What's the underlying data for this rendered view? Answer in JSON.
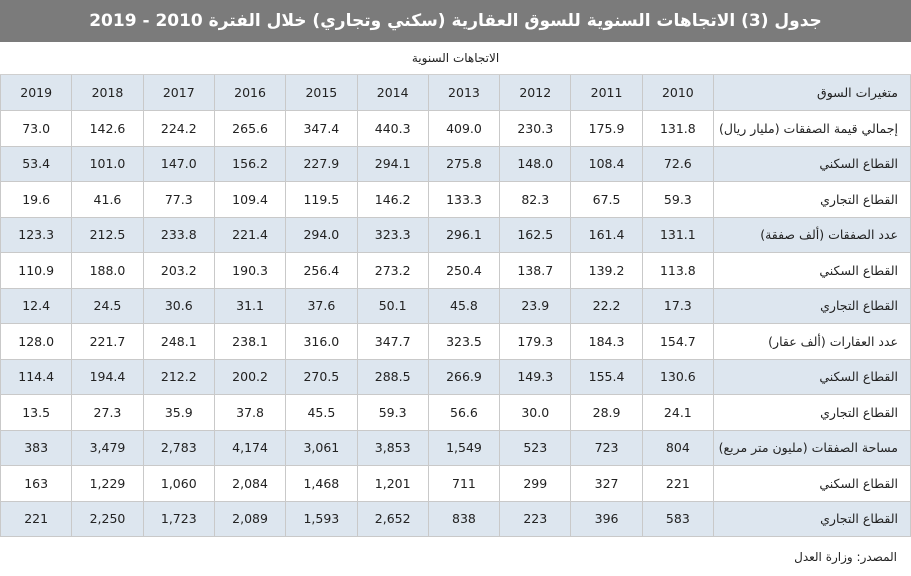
{
  "title": "جدول (3) الاتجاهات السنوية للسوق العقارية (سكني وتجاري) خلال الفترة 2010 - 2019",
  "subheader": "الاتجاهات السنوية",
  "header": {
    "label": "متغيرات السوق",
    "years": [
      "2010",
      "2011",
      "2012",
      "2013",
      "2014",
      "2015",
      "2016",
      "2017",
      "2018",
      "2019"
    ]
  },
  "rows": [
    {
      "label": "إجمالي قيمة الصفقات (مليار ريال)",
      "values": [
        "131.8",
        "175.9",
        "230.3",
        "409.0",
        "440.3",
        "347.4",
        "265.6",
        "224.2",
        "142.6",
        "73.0"
      ]
    },
    {
      "label": "القطاع السكني",
      "values": [
        "72.6",
        "108.4",
        "148.0",
        "275.8",
        "294.1",
        "227.9",
        "156.2",
        "147.0",
        "101.0",
        "53.4"
      ]
    },
    {
      "label": "القطاع التجاري",
      "values": [
        "59.3",
        "67.5",
        "82.3",
        "133.3",
        "146.2",
        "119.5",
        "109.4",
        "77.3",
        "41.6",
        "19.6"
      ]
    },
    {
      "label": "عدد الصفقات (ألف صفقة)",
      "values": [
        "131.1",
        "161.4",
        "162.5",
        "296.1",
        "323.3",
        "294.0",
        "221.4",
        "233.8",
        "212.5",
        "123.3"
      ]
    },
    {
      "label": "القطاع السكني",
      "values": [
        "113.8",
        "139.2",
        "138.7",
        "250.4",
        "273.2",
        "256.4",
        "190.3",
        "203.2",
        "188.0",
        "110.9"
      ]
    },
    {
      "label": "القطاع التجاري",
      "values": [
        "17.3",
        "22.2",
        "23.9",
        "45.8",
        "50.1",
        "37.6",
        "31.1",
        "30.6",
        "24.5",
        "12.4"
      ]
    },
    {
      "label": "عدد العقارات (ألف عقار)",
      "values": [
        "154.7",
        "184.3",
        "179.3",
        "323.5",
        "347.7",
        "316.0",
        "238.1",
        "248.1",
        "221.7",
        "128.0"
      ]
    },
    {
      "label": "القطاع السكني",
      "values": [
        "130.6",
        "155.4",
        "149.3",
        "266.9",
        "288.5",
        "270.5",
        "200.2",
        "212.2",
        "194.4",
        "114.4"
      ]
    },
    {
      "label": "القطاع التجاري",
      "values": [
        "24.1",
        "28.9",
        "30.0",
        "56.6",
        "59.3",
        "45.5",
        "37.8",
        "35.9",
        "27.3",
        "13.5"
      ]
    },
    {
      "label": "مساحة الصفقات (مليون متر مربع)",
      "values": [
        "804",
        "723",
        "523",
        "1,549",
        "3,853",
        "3,061",
        "4,174",
        "2,783",
        "3,479",
        "383"
      ]
    },
    {
      "label": "القطاع السكني",
      "values": [
        "221",
        "327",
        "299",
        "711",
        "1,201",
        "1,468",
        "2,084",
        "1,060",
        "1,229",
        "163"
      ]
    },
    {
      "label": "القطاع التجاري",
      "values": [
        "583",
        "396",
        "223",
        "838",
        "2,652",
        "1,593",
        "2,089",
        "1,723",
        "2,250",
        "221"
      ]
    }
  ],
  "source": "المصدر: وزارة العدل"
}
